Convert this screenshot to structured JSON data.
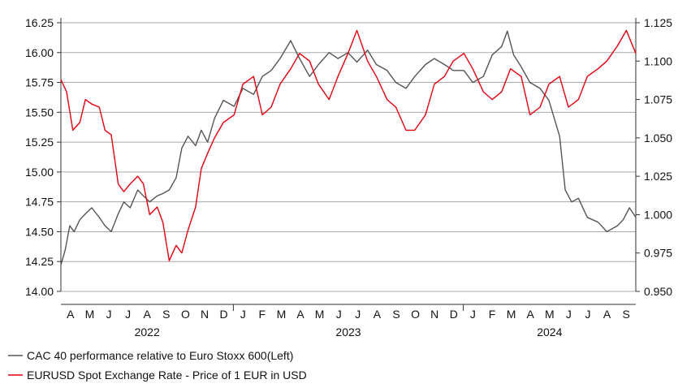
{
  "chart_data": {
    "type": "line",
    "title": "",
    "xlabel": "",
    "ylabel": "",
    "x_axis": {
      "months": [
        "A",
        "M",
        "J",
        "J",
        "A",
        "S",
        "O",
        "N",
        "D",
        "J",
        "F",
        "M",
        "A",
        "M",
        "J",
        "J",
        "A",
        "S",
        "O",
        "N",
        "D",
        "J",
        "F",
        "M",
        "A",
        "M",
        "J",
        "J",
        "A",
        "S"
      ],
      "years": [
        "2022",
        "2023",
        "2024"
      ],
      "range": [
        "2022-04-01",
        "2024-09-30"
      ]
    },
    "y_left": {
      "ylim": [
        14.0,
        16.25
      ],
      "ticks": [
        "14.00",
        "14.25",
        "14.50",
        "14.75",
        "15.00",
        "15.25",
        "15.50",
        "15.75",
        "16.00",
        "16.25"
      ]
    },
    "y_right": {
      "ylim": [
        0.95,
        1.125
      ],
      "ticks": [
        "0.950",
        "0.975",
        "1.000",
        "1.025",
        "1.050",
        "1.075",
        "1.100",
        "1.125"
      ]
    },
    "grid": "horizontal",
    "legend_position": "bottom-left",
    "series": [
      {
        "name": "CAC 40 performance relative to Euro Stoxx 600(Left)",
        "axis": "left",
        "color": "#555555",
        "x": [
          "2022-04-01",
          "2022-04-08",
          "2022-04-15",
          "2022-04-22",
          "2022-05-01",
          "2022-05-10",
          "2022-05-20",
          "2022-06-01",
          "2022-06-10",
          "2022-06-20",
          "2022-07-01",
          "2022-07-10",
          "2022-07-20",
          "2022-08-01",
          "2022-08-10",
          "2022-08-20",
          "2022-09-01",
          "2022-09-10",
          "2022-09-20",
          "2022-10-01",
          "2022-10-10",
          "2022-10-20",
          "2022-11-01",
          "2022-11-10",
          "2022-11-20",
          "2022-12-01",
          "2022-12-15",
          "2023-01-01",
          "2023-01-15",
          "2023-02-01",
          "2023-02-15",
          "2023-03-01",
          "2023-03-15",
          "2023-04-01",
          "2023-04-15",
          "2023-05-01",
          "2023-05-15",
          "2023-06-01",
          "2023-06-15",
          "2023-07-01",
          "2023-07-15",
          "2023-08-01",
          "2023-08-15",
          "2023-09-01",
          "2023-09-15",
          "2023-10-01",
          "2023-10-15",
          "2023-11-01",
          "2023-11-15",
          "2023-12-01",
          "2023-12-15",
          "2024-01-01",
          "2024-01-15",
          "2024-02-01",
          "2024-02-15",
          "2024-03-01",
          "2024-03-10",
          "2024-03-20",
          "2024-04-01",
          "2024-04-15",
          "2024-05-01",
          "2024-05-15",
          "2024-06-01",
          "2024-06-10",
          "2024-06-20",
          "2024-07-01",
          "2024-07-15",
          "2024-08-01",
          "2024-08-15",
          "2024-09-01",
          "2024-09-10",
          "2024-09-20",
          "2024-09-30"
        ],
        "values": [
          14.22,
          14.35,
          14.55,
          14.5,
          14.6,
          14.65,
          14.7,
          14.62,
          14.55,
          14.5,
          14.65,
          14.75,
          14.7,
          14.85,
          14.8,
          14.75,
          14.8,
          14.82,
          14.85,
          14.95,
          15.2,
          15.3,
          15.22,
          15.35,
          15.25,
          15.45,
          15.6,
          15.55,
          15.7,
          15.65,
          15.8,
          15.85,
          15.95,
          16.1,
          15.95,
          15.8,
          15.9,
          16.0,
          15.95,
          16.0,
          15.92,
          16.02,
          15.9,
          15.85,
          15.75,
          15.7,
          15.8,
          15.9,
          15.95,
          15.9,
          15.85,
          15.85,
          15.75,
          15.8,
          15.98,
          16.05,
          16.18,
          15.98,
          15.88,
          15.75,
          15.7,
          15.6,
          15.3,
          14.85,
          14.75,
          14.78,
          14.62,
          14.58,
          14.5,
          14.55,
          14.6,
          14.7,
          14.62
        ]
      },
      {
        "name": "EURUSD Spot Exchange Rate - Price of 1 EUR in USD",
        "axis": "right",
        "color": "#e3000f",
        "x": [
          "2022-04-01",
          "2022-04-10",
          "2022-04-20",
          "2022-05-01",
          "2022-05-10",
          "2022-05-20",
          "2022-06-01",
          "2022-06-10",
          "2022-06-20",
          "2022-07-01",
          "2022-07-10",
          "2022-07-20",
          "2022-08-01",
          "2022-08-10",
          "2022-08-20",
          "2022-09-01",
          "2022-09-10",
          "2022-09-20",
          "2022-10-01",
          "2022-10-10",
          "2022-10-20",
          "2022-11-01",
          "2022-11-10",
          "2022-11-20",
          "2022-12-01",
          "2022-12-15",
          "2023-01-01",
          "2023-01-15",
          "2023-02-01",
          "2023-02-15",
          "2023-03-01",
          "2023-03-15",
          "2023-04-01",
          "2023-04-15",
          "2023-05-01",
          "2023-05-15",
          "2023-06-01",
          "2023-06-15",
          "2023-07-01",
          "2023-07-15",
          "2023-08-01",
          "2023-08-15",
          "2023-09-01",
          "2023-09-15",
          "2023-10-01",
          "2023-10-15",
          "2023-11-01",
          "2023-11-15",
          "2023-12-01",
          "2023-12-15",
          "2024-01-01",
          "2024-01-15",
          "2024-02-01",
          "2024-02-15",
          "2024-03-01",
          "2024-03-15",
          "2024-04-01",
          "2024-04-15",
          "2024-05-01",
          "2024-05-15",
          "2024-06-01",
          "2024-06-15",
          "2024-07-01",
          "2024-07-15",
          "2024-08-01",
          "2024-08-15",
          "2024-09-01",
          "2024-09-15",
          "2024-09-30"
        ],
        "values": [
          1.088,
          1.08,
          1.055,
          1.06,
          1.075,
          1.072,
          1.07,
          1.055,
          1.052,
          1.02,
          1.015,
          1.02,
          1.025,
          1.02,
          1.0,
          1.005,
          0.995,
          0.97,
          0.98,
          0.975,
          0.99,
          1.005,
          1.03,
          1.04,
          1.05,
          1.06,
          1.065,
          1.085,
          1.09,
          1.065,
          1.07,
          1.085,
          1.095,
          1.105,
          1.1,
          1.085,
          1.075,
          1.09,
          1.105,
          1.12,
          1.1,
          1.09,
          1.075,
          1.07,
          1.055,
          1.055,
          1.065,
          1.085,
          1.09,
          1.1,
          1.105,
          1.095,
          1.08,
          1.075,
          1.08,
          1.095,
          1.09,
          1.065,
          1.07,
          1.085,
          1.09,
          1.07,
          1.075,
          1.09,
          1.095,
          1.1,
          1.11,
          1.12,
          1.105
        ]
      }
    ]
  }
}
